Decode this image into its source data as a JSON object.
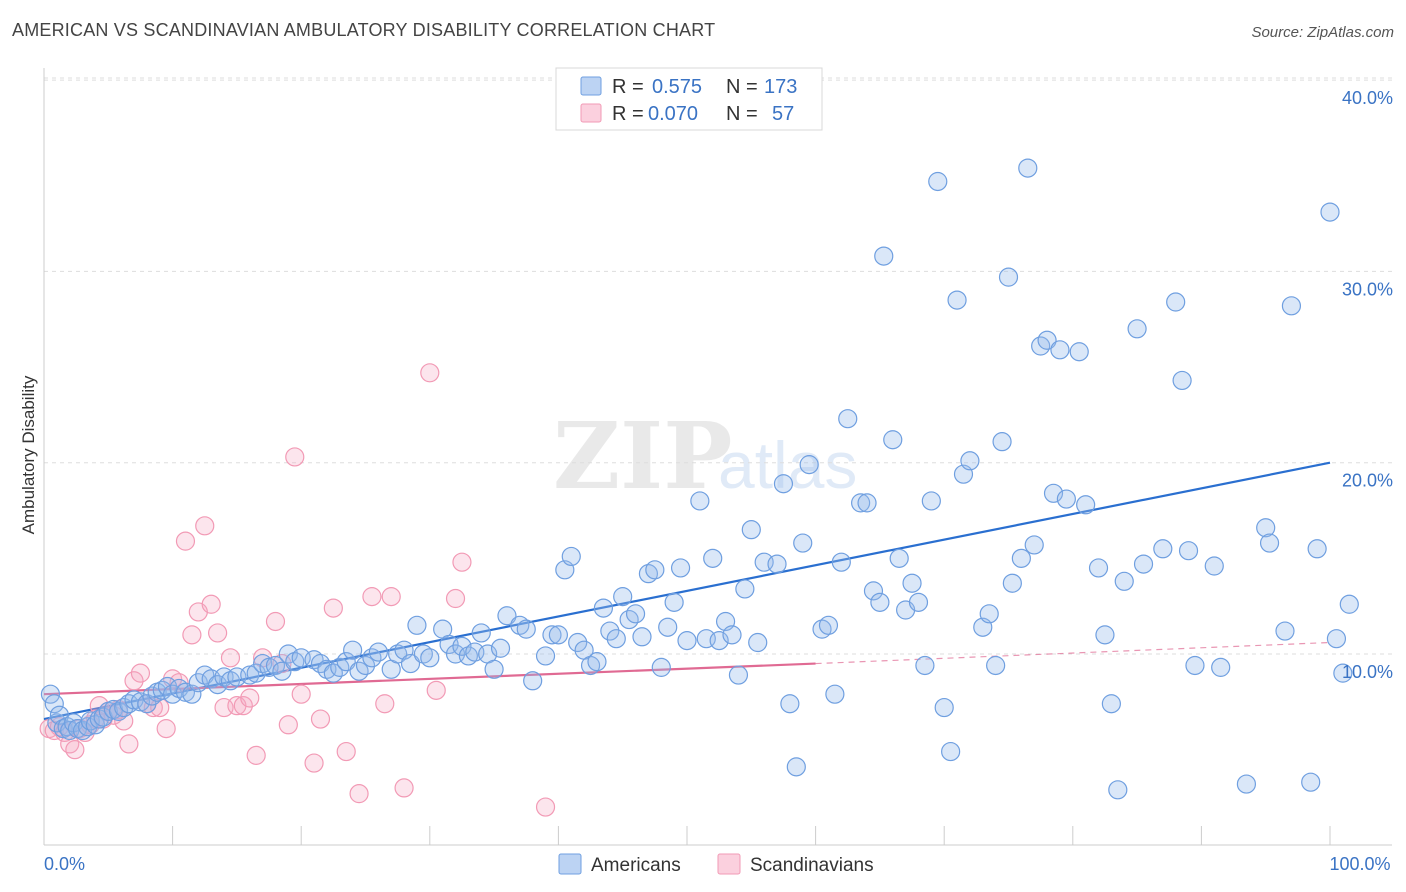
{
  "title": "AMERICAN VS SCANDINAVIAN AMBULATORY DISABILITY CORRELATION CHART",
  "source": "Source: ZipAtlas.com",
  "watermark": {
    "zip": "ZIP",
    "atlas": "atlas"
  },
  "colors": {
    "americans": "#6f9fe0",
    "americans_line": "#2a6fd0",
    "scandinavians": "#f29ab5",
    "scandinavians_line": "#e06a93",
    "tick_text": "#3a73c4",
    "grid": "#dddddd"
  },
  "stats": [
    {
      "r_label": "R =",
      "r_value": "0.575",
      "n_label": "N =",
      "n_value": "173"
    },
    {
      "r_label": "R =",
      "r_value": "0.070",
      "n_label": "N =",
      "n_value": "57"
    }
  ],
  "chart_data": {
    "type": "scatter",
    "title": "AMERICAN VS SCANDINAVIAN AMBULATORY DISABILITY CORRELATION CHART",
    "xlabel": "",
    "ylabel": "Ambulatory Disability",
    "xlim": [
      0,
      100
    ],
    "ylim": [
      0,
      42
    ],
    "x_tick_labels": [
      {
        "value": 0,
        "label": "0.0%"
      },
      {
        "value": 100,
        "label": "100.0%"
      }
    ],
    "y_tick_labels": [
      {
        "value": 10,
        "label": "10.0%"
      },
      {
        "value": 20,
        "label": "20.0%"
      },
      {
        "value": 30,
        "label": "30.0%"
      },
      {
        "value": 40,
        "label": "40.0%"
      }
    ],
    "grid": true,
    "legend_position": "bottom-center",
    "series": [
      {
        "name": "Americans",
        "color": "#6f9fe0",
        "trend": {
          "x": [
            0,
            100
          ],
          "y": [
            6.6,
            20.0
          ]
        },
        "points": [
          [
            0.5,
            7.9
          ],
          [
            0.8,
            7.4
          ],
          [
            1.0,
            6.4
          ],
          [
            1.2,
            6.8
          ],
          [
            1.5,
            6.1
          ],
          [
            1.8,
            6.2
          ],
          [
            2.0,
            6.0
          ],
          [
            2.3,
            6.4
          ],
          [
            2.6,
            6.1
          ],
          [
            3.0,
            6.0
          ],
          [
            3.4,
            6.2
          ],
          [
            3.6,
            6.5
          ],
          [
            4.0,
            6.3
          ],
          [
            4.3,
            6.6
          ],
          [
            4.6,
            6.7
          ],
          [
            5.0,
            7.0
          ],
          [
            5.4,
            7.1
          ],
          [
            5.8,
            7.0
          ],
          [
            6.2,
            7.2
          ],
          [
            6.6,
            7.4
          ],
          [
            7.0,
            7.6
          ],
          [
            7.5,
            7.5
          ],
          [
            8.0,
            7.4
          ],
          [
            8.4,
            7.8
          ],
          [
            8.8,
            8.0
          ],
          [
            9.2,
            8.1
          ],
          [
            9.6,
            8.3
          ],
          [
            10.0,
            7.9
          ],
          [
            10.5,
            8.2
          ],
          [
            11.0,
            8.0
          ],
          [
            11.5,
            7.9
          ],
          [
            12.0,
            8.5
          ],
          [
            12.5,
            8.9
          ],
          [
            13.0,
            8.7
          ],
          [
            13.5,
            8.4
          ],
          [
            14.0,
            8.8
          ],
          [
            14.5,
            8.6
          ],
          [
            15.0,
            8.8
          ],
          [
            16.0,
            8.9
          ],
          [
            16.5,
            9.0
          ],
          [
            17.0,
            9.5
          ],
          [
            17.5,
            9.3
          ],
          [
            18.0,
            9.4
          ],
          [
            18.5,
            9.1
          ],
          [
            19.0,
            10.0
          ],
          [
            19.5,
            9.6
          ],
          [
            20.0,
            9.8
          ],
          [
            21.0,
            9.7
          ],
          [
            21.5,
            9.5
          ],
          [
            22.0,
            9.2
          ],
          [
            22.5,
            9.0
          ],
          [
            23.0,
            9.3
          ],
          [
            23.5,
            9.6
          ],
          [
            24.0,
            10.2
          ],
          [
            24.5,
            9.1
          ],
          [
            25.0,
            9.4
          ],
          [
            25.5,
            9.8
          ],
          [
            26.0,
            10.1
          ],
          [
            27.0,
            9.2
          ],
          [
            27.5,
            10.0
          ],
          [
            28.0,
            10.2
          ],
          [
            28.5,
            9.5
          ],
          [
            29.0,
            11.5
          ],
          [
            29.5,
            10.0
          ],
          [
            30.0,
            9.8
          ],
          [
            31.0,
            11.3
          ],
          [
            31.5,
            10.5
          ],
          [
            32.0,
            10.0
          ],
          [
            32.5,
            10.4
          ],
          [
            33.0,
            9.9
          ],
          [
            33.5,
            10.1
          ],
          [
            34.0,
            11.1
          ],
          [
            34.5,
            10.0
          ],
          [
            35.0,
            9.2
          ],
          [
            35.5,
            10.3
          ],
          [
            36.0,
            12.0
          ],
          [
            37.0,
            11.5
          ],
          [
            37.5,
            11.3
          ],
          [
            38.0,
            8.6
          ],
          [
            39.0,
            9.9
          ],
          [
            39.5,
            11.0
          ],
          [
            40.0,
            11.0
          ],
          [
            40.5,
            14.4
          ],
          [
            41.0,
            15.1
          ],
          [
            41.5,
            10.6
          ],
          [
            42.0,
            10.2
          ],
          [
            42.5,
            9.4
          ],
          [
            43.0,
            9.6
          ],
          [
            43.5,
            12.4
          ],
          [
            44.0,
            11.2
          ],
          [
            44.5,
            10.8
          ],
          [
            45.0,
            13.0
          ],
          [
            45.5,
            11.8
          ],
          [
            46.0,
            12.1
          ],
          [
            46.5,
            10.9
          ],
          [
            47.0,
            14.2
          ],
          [
            47.5,
            14.4
          ],
          [
            48.0,
            9.3
          ],
          [
            48.5,
            11.4
          ],
          [
            49.0,
            12.7
          ],
          [
            49.5,
            14.5
          ],
          [
            50.0,
            10.7
          ],
          [
            51.0,
            18.0
          ],
          [
            51.5,
            10.8
          ],
          [
            52.0,
            15.0
          ],
          [
            52.5,
            10.7
          ],
          [
            53.0,
            11.7
          ],
          [
            53.5,
            11.0
          ],
          [
            54.0,
            8.9
          ],
          [
            54.5,
            13.4
          ],
          [
            55.0,
            16.5
          ],
          [
            55.5,
            10.6
          ],
          [
            56.0,
            14.8
          ],
          [
            57.0,
            14.7
          ],
          [
            57.5,
            18.9
          ],
          [
            58.0,
            7.4
          ],
          [
            58.5,
            4.1
          ],
          [
            59.0,
            15.8
          ],
          [
            59.5,
            19.9
          ],
          [
            60.5,
            11.3
          ],
          [
            61.0,
            11.5
          ],
          [
            61.5,
            7.9
          ],
          [
            62.0,
            14.8
          ],
          [
            62.5,
            22.3
          ],
          [
            63.5,
            17.9
          ],
          [
            64.0,
            17.9
          ],
          [
            64.5,
            13.3
          ],
          [
            65.0,
            12.7
          ],
          [
            65.3,
            30.8
          ],
          [
            66.0,
            21.2
          ],
          [
            66.5,
            15.0
          ],
          [
            67.0,
            12.3
          ],
          [
            67.5,
            13.7
          ],
          [
            68.0,
            12.7
          ],
          [
            68.5,
            9.4
          ],
          [
            69.0,
            18.0
          ],
          [
            69.5,
            34.7
          ],
          [
            70.0,
            7.2
          ],
          [
            70.5,
            4.9
          ],
          [
            71.0,
            28.5
          ],
          [
            71.5,
            19.4
          ],
          [
            72.0,
            20.1
          ],
          [
            73.0,
            11.4
          ],
          [
            73.5,
            12.1
          ],
          [
            74.0,
            9.4
          ],
          [
            74.5,
            21.1
          ],
          [
            75.0,
            29.7
          ],
          [
            75.3,
            13.7
          ],
          [
            76.0,
            15.0
          ],
          [
            76.5,
            35.4
          ],
          [
            77.0,
            15.7
          ],
          [
            77.5,
            26.1
          ],
          [
            78.0,
            26.4
          ],
          [
            78.5,
            18.4
          ],
          [
            79.0,
            25.9
          ],
          [
            79.5,
            18.1
          ],
          [
            80.5,
            25.8
          ],
          [
            81.0,
            17.8
          ],
          [
            82.0,
            14.5
          ],
          [
            82.5,
            11.0
          ],
          [
            83.0,
            7.4
          ],
          [
            83.5,
            2.9
          ],
          [
            84.0,
            13.8
          ],
          [
            85.0,
            27.0
          ],
          [
            85.5,
            14.7
          ],
          [
            87.0,
            15.5
          ],
          [
            88.0,
            28.4
          ],
          [
            88.5,
            24.3
          ],
          [
            89.0,
            15.4
          ],
          [
            89.5,
            9.4
          ],
          [
            91.0,
            14.6
          ],
          [
            91.5,
            9.3
          ],
          [
            93.5,
            3.2
          ],
          [
            95.0,
            16.6
          ],
          [
            95.3,
            15.8
          ],
          [
            96.5,
            11.2
          ],
          [
            97.0,
            28.2
          ],
          [
            98.5,
            3.3
          ],
          [
            99.0,
            15.5
          ],
          [
            100.0,
            33.1
          ],
          [
            100.5,
            10.8
          ],
          [
            101.0,
            9.0
          ],
          [
            101.5,
            12.6
          ]
        ]
      },
      {
        "name": "Scandinavians",
        "color": "#f29ab5",
        "trend": {
          "x": [
            0,
            60
          ],
          "y": [
            7.9,
            9.5
          ],
          "dashed_to": [
            100,
            10.6
          ]
        },
        "points": [
          [
            0.4,
            6.1
          ],
          [
            0.8,
            6.0
          ],
          [
            1.2,
            6.2
          ],
          [
            1.6,
            5.9
          ],
          [
            2.0,
            5.3
          ],
          [
            2.4,
            5.0
          ],
          [
            2.8,
            6.1
          ],
          [
            3.2,
            5.9
          ],
          [
            3.6,
            6.3
          ],
          [
            4.0,
            6.6
          ],
          [
            4.3,
            7.3
          ],
          [
            4.6,
            6.6
          ],
          [
            5.0,
            7.0
          ],
          [
            5.4,
            6.8
          ],
          [
            5.8,
            7.1
          ],
          [
            6.2,
            6.5
          ],
          [
            6.6,
            5.3
          ],
          [
            7.0,
            8.6
          ],
          [
            7.5,
            9.0
          ],
          [
            8.0,
            7.4
          ],
          [
            8.5,
            7.2
          ],
          [
            9.0,
            7.2
          ],
          [
            9.5,
            6.1
          ],
          [
            10.0,
            8.7
          ],
          [
            10.5,
            8.5
          ],
          [
            11.0,
            15.9
          ],
          [
            11.5,
            11.0
          ],
          [
            12.0,
            12.2
          ],
          [
            12.5,
            16.7
          ],
          [
            13.0,
            12.6
          ],
          [
            13.5,
            11.1
          ],
          [
            14.0,
            7.2
          ],
          [
            14.5,
            9.8
          ],
          [
            15.0,
            7.3
          ],
          [
            15.5,
            7.3
          ],
          [
            16.0,
            7.7
          ],
          [
            16.5,
            4.7
          ],
          [
            17.0,
            9.8
          ],
          [
            18.0,
            11.7
          ],
          [
            18.5,
            9.5
          ],
          [
            19.0,
            6.3
          ],
          [
            19.5,
            20.3
          ],
          [
            20.0,
            7.9
          ],
          [
            21.0,
            4.3
          ],
          [
            21.5,
            6.6
          ],
          [
            22.5,
            12.4
          ],
          [
            23.5,
            4.9
          ],
          [
            24.5,
            2.7
          ],
          [
            25.5,
            13.0
          ],
          [
            26.5,
            7.4
          ],
          [
            27.0,
            13.0
          ],
          [
            28.0,
            3.0
          ],
          [
            30.0,
            24.7
          ],
          [
            30.5,
            8.1
          ],
          [
            32.0,
            12.9
          ],
          [
            32.5,
            14.8
          ],
          [
            39.0,
            2.0
          ]
        ]
      }
    ]
  },
  "legend": {
    "americans": "Americans",
    "scandinavians": "Scandinavians"
  }
}
